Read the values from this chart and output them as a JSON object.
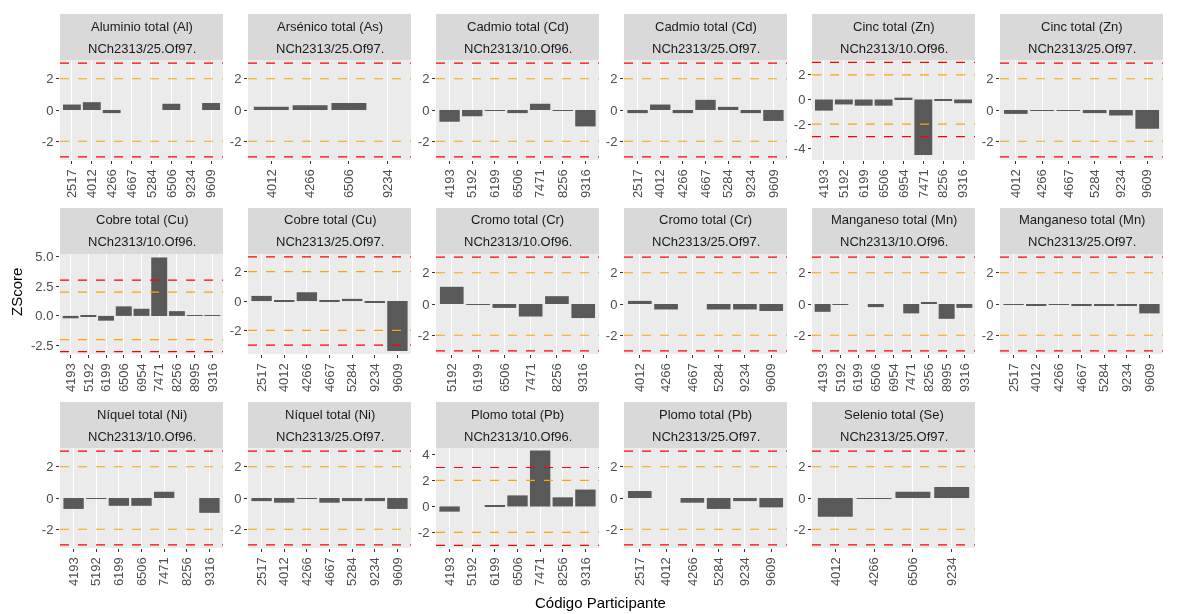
{
  "chart_data": [
    {
      "type": "bar",
      "title": "Aluminio total (Al)",
      "subtitle": "NCh2313/25.Of97.",
      "categories": [
        "2517",
        "4012",
        "4266",
        "4667",
        "5284",
        "6506",
        "9234",
        "9609"
      ],
      "values": [
        0.35,
        0.5,
        -0.2,
        null,
        null,
        0.4,
        null,
        0.45
      ],
      "color": "#595959",
      "ylim": [
        -3.2,
        3.2
      ],
      "yticks": [
        -2,
        0,
        2
      ],
      "grid": "x",
      "legend": false,
      "ref_lines": [
        {
          "axis": "y",
          "value": 3,
          "color": "#ff0000",
          "line_style": "dashed"
        },
        {
          "axis": "y",
          "value": 2,
          "color": "#ffa500",
          "line_style": "dashed"
        },
        {
          "axis": "y",
          "value": -2,
          "color": "#ffa500",
          "line_style": "dashed"
        },
        {
          "axis": "y",
          "value": -3,
          "color": "#ff0000",
          "line_style": "dashed"
        }
      ]
    },
    {
      "type": "bar",
      "title": "Arsénico total (As)",
      "subtitle": "NCh2313/25.Of97.",
      "categories": [
        "4012",
        "4266",
        "6506",
        "9234"
      ],
      "values": [
        0.2,
        0.3,
        0.45,
        null
      ],
      "color": "#595959",
      "ylim": [
        -3.2,
        3.2
      ],
      "yticks": [
        -2,
        0,
        2
      ],
      "grid": "x",
      "legend": false,
      "ref_lines": [
        {
          "axis": "y",
          "value": 3,
          "color": "#ff0000",
          "line_style": "dashed"
        },
        {
          "axis": "y",
          "value": 2,
          "color": "#ffa500",
          "line_style": "dashed"
        },
        {
          "axis": "y",
          "value": -2,
          "color": "#ffa500",
          "line_style": "dashed"
        },
        {
          "axis": "y",
          "value": -3,
          "color": "#ff0000",
          "line_style": "dashed"
        }
      ]
    },
    {
      "type": "bar",
      "title": "Cadmio total (Cd)",
      "subtitle": "NCh2313/10.Of96.",
      "categories": [
        "4193",
        "5192",
        "6199",
        "6506",
        "7471",
        "8256",
        "9316"
      ],
      "values": [
        -0.75,
        -0.4,
        -0.05,
        -0.2,
        0.4,
        -0.05,
        -1.05
      ],
      "color": "#595959",
      "ylim": [
        -3.2,
        3.2
      ],
      "yticks": [
        -2,
        0,
        2
      ],
      "grid": "x",
      "legend": false,
      "ref_lines": [
        {
          "axis": "y",
          "value": 3,
          "color": "#ff0000",
          "line_style": "dashed"
        },
        {
          "axis": "y",
          "value": 2,
          "color": "#ffa500",
          "line_style": "dashed"
        },
        {
          "axis": "y",
          "value": -2,
          "color": "#ffa500",
          "line_style": "dashed"
        },
        {
          "axis": "y",
          "value": -3,
          "color": "#ff0000",
          "line_style": "dashed"
        }
      ]
    },
    {
      "type": "bar",
      "title": "Cadmio total (Cd)",
      "subtitle": "NCh2313/25.Of97.",
      "categories": [
        "2517",
        "4012",
        "4266",
        "4667",
        "5284",
        "9234",
        "9609"
      ],
      "values": [
        -0.2,
        0.35,
        -0.2,
        0.65,
        0.2,
        -0.2,
        -0.7
      ],
      "color": "#595959",
      "ylim": [
        -3.2,
        3.2
      ],
      "yticks": [
        -2,
        0,
        2
      ],
      "grid": "x",
      "legend": false,
      "ref_lines": [
        {
          "axis": "y",
          "value": 3,
          "color": "#ff0000",
          "line_style": "dashed"
        },
        {
          "axis": "y",
          "value": 2,
          "color": "#ffa500",
          "line_style": "dashed"
        },
        {
          "axis": "y",
          "value": -2,
          "color": "#ffa500",
          "line_style": "dashed"
        },
        {
          "axis": "y",
          "value": -3,
          "color": "#ff0000",
          "line_style": "dashed"
        }
      ]
    },
    {
      "type": "bar",
      "title": "Cinc total (Zn)",
      "subtitle": "NCh2313/10.Of96.",
      "categories": [
        "4193",
        "5192",
        "6199",
        "6506",
        "6954",
        "7471",
        "8256",
        "9316"
      ],
      "values": [
        -0.9,
        -0.4,
        -0.5,
        -0.5,
        0.15,
        -4.5,
        -0.1,
        -0.3
      ],
      "color": "#595959",
      "ylim": [
        -4.9,
        3.2
      ],
      "yticks": [
        -4,
        -2,
        0,
        2
      ],
      "grid": "x",
      "legend": false,
      "ref_lines": [
        {
          "axis": "y",
          "value": 3,
          "color": "#ff0000",
          "line_style": "dashed"
        },
        {
          "axis": "y",
          "value": 2,
          "color": "#ffa500",
          "line_style": "dashed"
        },
        {
          "axis": "y",
          "value": -2,
          "color": "#ffa500",
          "line_style": "dashed"
        },
        {
          "axis": "y",
          "value": -3,
          "color": "#ff0000",
          "line_style": "dashed"
        }
      ]
    },
    {
      "type": "bar",
      "title": "Cinc total (Zn)",
      "subtitle": "NCh2313/25.Of97.",
      "categories": [
        "4012",
        "4266",
        "4667",
        "5284",
        "9234",
        "9609"
      ],
      "values": [
        -0.25,
        -0.05,
        -0.05,
        -0.2,
        -0.35,
        -1.2
      ],
      "color": "#595959",
      "ylim": [
        -3.2,
        3.2
      ],
      "yticks": [
        -2,
        0,
        2
      ],
      "grid": "x",
      "legend": false,
      "ref_lines": [
        {
          "axis": "y",
          "value": 3,
          "color": "#ff0000",
          "line_style": "dashed"
        },
        {
          "axis": "y",
          "value": 2,
          "color": "#ffa500",
          "line_style": "dashed"
        },
        {
          "axis": "y",
          "value": -2,
          "color": "#ffa500",
          "line_style": "dashed"
        },
        {
          "axis": "y",
          "value": -3,
          "color": "#ff0000",
          "line_style": "dashed"
        }
      ]
    },
    {
      "type": "bar",
      "title": "Cobre total (Cu)",
      "subtitle": "NCh2313/10.Of96.",
      "ylabel": "ZScore",
      "categories": [
        "4193",
        "5192",
        "6199",
        "6506",
        "6954",
        "7471",
        "8256",
        "8995",
        "9316"
      ],
      "values": [
        -0.2,
        -0.05,
        -0.4,
        0.8,
        0.6,
        4.9,
        0.4,
        0.05,
        0.05
      ],
      "color": "#595959",
      "ylim": [
        -3.2,
        5.2
      ],
      "yticks": [
        {
          "value": -2.5,
          "label": "-2.5"
        },
        {
          "value": 0,
          "label": "0.0"
        },
        {
          "value": 2.5,
          "label": "2.5"
        },
        {
          "value": 5,
          "label": "5.0"
        }
      ],
      "grid": "x",
      "legend": false,
      "ref_lines": [
        {
          "axis": "y",
          "value": 3,
          "color": "#ff0000",
          "line_style": "dashed"
        },
        {
          "axis": "y",
          "value": 2,
          "color": "#ffa500",
          "line_style": "dashed"
        },
        {
          "axis": "y",
          "value": -2,
          "color": "#ffa500",
          "line_style": "dashed"
        },
        {
          "axis": "y",
          "value": -3,
          "color": "#ff0000",
          "line_style": "dashed"
        }
      ]
    },
    {
      "type": "bar",
      "title": "Cobre total (Cu)",
      "subtitle": "NCh2313/25.Of97.",
      "categories": [
        "2517",
        "4012",
        "4266",
        "4667",
        "5284",
        "9234",
        "9609"
      ],
      "values": [
        0.35,
        0.05,
        0.6,
        0.05,
        0.15,
        -0.1,
        -3.4
      ],
      "color": "#595959",
      "ylim": [
        -3.6,
        3.2
      ],
      "yticks": [
        -2,
        0,
        2
      ],
      "grid": "x",
      "legend": false,
      "ref_lines": [
        {
          "axis": "y",
          "value": 3,
          "color": "#ff0000",
          "line_style": "dashed"
        },
        {
          "axis": "y",
          "value": 2,
          "color": "#ffa500",
          "line_style": "dashed"
        },
        {
          "axis": "y",
          "value": -2,
          "color": "#ffa500",
          "line_style": "dashed"
        },
        {
          "axis": "y",
          "value": -3,
          "color": "#ff0000",
          "line_style": "dashed"
        }
      ]
    },
    {
      "type": "bar",
      "title": "Cromo total (Cr)",
      "subtitle": "NCh2313/10.Of96.",
      "categories": [
        "5192",
        "6199",
        "6506",
        "7471",
        "8256",
        "9316"
      ],
      "values": [
        1.1,
        -0.05,
        -0.25,
        -0.8,
        0.5,
        -0.9
      ],
      "color": "#595959",
      "ylim": [
        -3.2,
        3.2
      ],
      "yticks": [
        -2,
        0,
        2
      ],
      "grid": "x",
      "legend": false,
      "ref_lines": [
        {
          "axis": "y",
          "value": 3,
          "color": "#ff0000",
          "line_style": "dashed"
        },
        {
          "axis": "y",
          "value": 2,
          "color": "#ffa500",
          "line_style": "dashed"
        },
        {
          "axis": "y",
          "value": -2,
          "color": "#ffa500",
          "line_style": "dashed"
        },
        {
          "axis": "y",
          "value": -3,
          "color": "#ff0000",
          "line_style": "dashed"
        }
      ]
    },
    {
      "type": "bar",
      "title": "Cromo total (Cr)",
      "subtitle": "NCh2313/25.Of97.",
      "categories": [
        "4012",
        "4266",
        "4667",
        "5284",
        "9234",
        "9609"
      ],
      "values": [
        0.2,
        -0.35,
        null,
        -0.35,
        -0.35,
        -0.45
      ],
      "color": "#595959",
      "ylim": [
        -3.2,
        3.2
      ],
      "yticks": [
        -2,
        0,
        2
      ],
      "grid": "x",
      "legend": false,
      "ref_lines": [
        {
          "axis": "y",
          "value": 3,
          "color": "#ff0000",
          "line_style": "dashed"
        },
        {
          "axis": "y",
          "value": 2,
          "color": "#ffa500",
          "line_style": "dashed"
        },
        {
          "axis": "y",
          "value": -2,
          "color": "#ffa500",
          "line_style": "dashed"
        },
        {
          "axis": "y",
          "value": -3,
          "color": "#ff0000",
          "line_style": "dashed"
        }
      ]
    },
    {
      "type": "bar",
      "title": "Manganeso total (Mn)",
      "subtitle": "NCh2313/10.Of96.",
      "categories": [
        "4193",
        "5192",
        "6199",
        "6506",
        "6954",
        "7471",
        "8256",
        "8995",
        "9316"
      ],
      "values": [
        -0.5,
        -0.02,
        null,
        -0.2,
        null,
        -0.6,
        0.1,
        -0.95,
        -0.25
      ],
      "color": "#595959",
      "ylim": [
        -3.2,
        3.2
      ],
      "yticks": [
        -2,
        0,
        2
      ],
      "grid": "x",
      "legend": false,
      "ref_lines": [
        {
          "axis": "y",
          "value": 3,
          "color": "#ff0000",
          "line_style": "dashed"
        },
        {
          "axis": "y",
          "value": 2,
          "color": "#ffa500",
          "line_style": "dashed"
        },
        {
          "axis": "y",
          "value": -2,
          "color": "#ffa500",
          "line_style": "dashed"
        },
        {
          "axis": "y",
          "value": -3,
          "color": "#ff0000",
          "line_style": "dashed"
        }
      ]
    },
    {
      "type": "bar",
      "title": "Manganeso total (Mn)",
      "subtitle": "NCh2313/25.Of97.",
      "categories": [
        "2517",
        "4012",
        "4266",
        "4667",
        "5284",
        "9234",
        "9609"
      ],
      "values": [
        -0.02,
        -0.1,
        -0.02,
        -0.1,
        -0.1,
        -0.1,
        -0.6
      ],
      "color": "#595959",
      "ylim": [
        -3.2,
        3.2
      ],
      "yticks": [
        -2,
        0,
        2
      ],
      "grid": "x",
      "legend": false,
      "ref_lines": [
        {
          "axis": "y",
          "value": 3,
          "color": "#ff0000",
          "line_style": "dashed"
        },
        {
          "axis": "y",
          "value": 2,
          "color": "#ffa500",
          "line_style": "dashed"
        },
        {
          "axis": "y",
          "value": -2,
          "color": "#ffa500",
          "line_style": "dashed"
        },
        {
          "axis": "y",
          "value": -3,
          "color": "#ff0000",
          "line_style": "dashed"
        }
      ]
    },
    {
      "type": "bar",
      "title": "Níquel total (Ni)",
      "subtitle": "NCh2313/10.Of96.",
      "categories": [
        "4193",
        "5192",
        "6199",
        "6506",
        "7471",
        "8256",
        "9316"
      ],
      "values": [
        -0.7,
        -0.05,
        -0.5,
        -0.5,
        0.4,
        null,
        -0.95
      ],
      "color": "#595959",
      "ylim": [
        -3.2,
        3.2
      ],
      "yticks": [
        -2,
        0,
        2
      ],
      "grid": "x",
      "legend": false,
      "ref_lines": [
        {
          "axis": "y",
          "value": 3,
          "color": "#ff0000",
          "line_style": "dashed"
        },
        {
          "axis": "y",
          "value": 2,
          "color": "#ffa500",
          "line_style": "dashed"
        },
        {
          "axis": "y",
          "value": -2,
          "color": "#ffa500",
          "line_style": "dashed"
        },
        {
          "axis": "y",
          "value": -3,
          "color": "#ff0000",
          "line_style": "dashed"
        }
      ]
    },
    {
      "type": "bar",
      "title": "Níquel total (Ni)",
      "subtitle": "NCh2313/25.Of97.",
      "categories": [
        "2517",
        "4012",
        "4266",
        "4667",
        "5284",
        "9234",
        "9609"
      ],
      "values": [
        -0.2,
        -0.3,
        -0.05,
        -0.3,
        -0.2,
        -0.2,
        -0.7
      ],
      "color": "#595959",
      "ylim": [
        -3.2,
        3.2
      ],
      "yticks": [
        -2,
        0,
        2
      ],
      "grid": "x",
      "legend": false,
      "ref_lines": [
        {
          "axis": "y",
          "value": 3,
          "color": "#ff0000",
          "line_style": "dashed"
        },
        {
          "axis": "y",
          "value": 2,
          "color": "#ffa500",
          "line_style": "dashed"
        },
        {
          "axis": "y",
          "value": -2,
          "color": "#ffa500",
          "line_style": "dashed"
        },
        {
          "axis": "y",
          "value": -3,
          "color": "#ff0000",
          "line_style": "dashed"
        }
      ]
    },
    {
      "type": "bar",
      "title": "Plomo total (Pb)",
      "subtitle": "NCh2313/10.Of96.",
      "xlabel": "Código Participante",
      "categories": [
        "4193",
        "5192",
        "6199",
        "6506",
        "7471",
        "8256",
        "9316"
      ],
      "values": [
        -0.4,
        null,
        0.05,
        0.85,
        4.3,
        0.7,
        1.3
      ],
      "color": "#595959",
      "ylim": [
        -3.2,
        4.5
      ],
      "yticks": [
        -2,
        0,
        2,
        4
      ],
      "grid": "x",
      "legend": false,
      "ref_lines": [
        {
          "axis": "y",
          "value": 3,
          "color": "#ff0000",
          "line_style": "dashed"
        },
        {
          "axis": "y",
          "value": 2,
          "color": "#ffa500",
          "line_style": "dashed"
        },
        {
          "axis": "y",
          "value": -2,
          "color": "#ffa500",
          "line_style": "dashed"
        },
        {
          "axis": "y",
          "value": -3,
          "color": "#ff0000",
          "line_style": "dashed"
        }
      ]
    },
    {
      "type": "bar",
      "title": "Plomo total (Pb)",
      "subtitle": "NCh2313/25.Of97.",
      "categories": [
        "2517",
        "4012",
        "4266",
        "5284",
        "9234",
        "9609"
      ],
      "values": [
        0.45,
        null,
        -0.3,
        -0.7,
        -0.2,
        -0.6
      ],
      "color": "#595959",
      "ylim": [
        -3.2,
        3.2
      ],
      "yticks": [
        -2,
        0,
        2
      ],
      "grid": "x",
      "legend": false,
      "ref_lines": [
        {
          "axis": "y",
          "value": 3,
          "color": "#ff0000",
          "line_style": "dashed"
        },
        {
          "axis": "y",
          "value": 2,
          "color": "#ffa500",
          "line_style": "dashed"
        },
        {
          "axis": "y",
          "value": -2,
          "color": "#ffa500",
          "line_style": "dashed"
        },
        {
          "axis": "y",
          "value": -3,
          "color": "#ff0000",
          "line_style": "dashed"
        }
      ]
    },
    {
      "type": "bar",
      "title": "Selenio total (Se)",
      "subtitle": "NCh2313/25.Of97.",
      "categories": [
        "4012",
        "4266",
        "6506",
        "9234"
      ],
      "values": [
        -1.2,
        -0.05,
        0.4,
        0.7
      ],
      "color": "#595959",
      "ylim": [
        -3.2,
        3.2
      ],
      "yticks": [
        -2,
        0,
        2
      ],
      "grid": "x",
      "legend": false,
      "ref_lines": [
        {
          "axis": "y",
          "value": 3,
          "color": "#ff0000",
          "line_style": "dashed"
        },
        {
          "axis": "y",
          "value": 2,
          "color": "#ffa500",
          "line_style": "dashed"
        },
        {
          "axis": "y",
          "value": -2,
          "color": "#ffa500",
          "line_style": "dashed"
        },
        {
          "axis": "y",
          "value": -3,
          "color": "#ff0000",
          "line_style": "dashed"
        }
      ]
    }
  ]
}
